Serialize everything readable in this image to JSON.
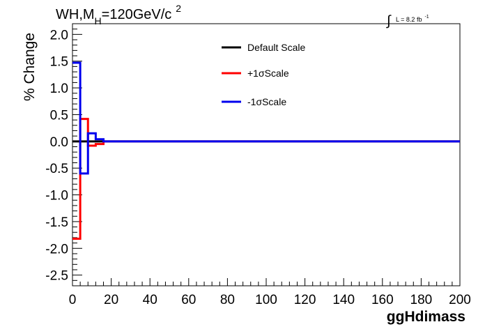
{
  "chart_data": {
    "type": "line",
    "title": "WH,M",
    "title_subscript": "H",
    "title_suffix": "=120GeV/c",
    "title_superscript": "2",
    "lumi_integral": "∫",
    "lumi_text": "L = 8.2 fb",
    "lumi_superscript": "-1",
    "xlabel": "ggHdimass",
    "ylabel": "% Change",
    "xlim": [
      0,
      200
    ],
    "ylim": [
      -2.7,
      2.2
    ],
    "xticks": [
      0,
      20,
      40,
      60,
      80,
      100,
      120,
      140,
      160,
      180,
      200
    ],
    "xtick_labels": [
      "0",
      "20",
      "40",
      "60",
      "80",
      "100",
      "120",
      "140",
      "160",
      "180",
      "200"
    ],
    "yticks": [
      2.0,
      1.5,
      1.0,
      0.5,
      0.0,
      -0.5,
      -1.0,
      -1.5,
      -2.0,
      -2.5
    ],
    "ytick_labels": [
      "2.0",
      "1.5",
      "1.0",
      "0.5",
      "0.0",
      "-0.5",
      "-1.0",
      "-1.5",
      "-2.0",
      "-2.5"
    ],
    "grid": false,
    "legend_position": "top-center",
    "bin_edges": [
      0,
      4,
      8,
      12,
      16,
      200
    ],
    "series": [
      {
        "name": "Default Scale",
        "color": "#000000",
        "values": [
          0,
          0,
          0,
          0,
          0
        ]
      },
      {
        "name": "+1σScale",
        "color": "#ff0000",
        "values": [
          -1.82,
          0.42,
          -0.08,
          -0.05,
          0
        ]
      },
      {
        "name": "-1σScale",
        "color": "#0000ee",
        "values": [
          1.47,
          -0.6,
          0.15,
          0.04,
          0
        ]
      }
    ]
  }
}
